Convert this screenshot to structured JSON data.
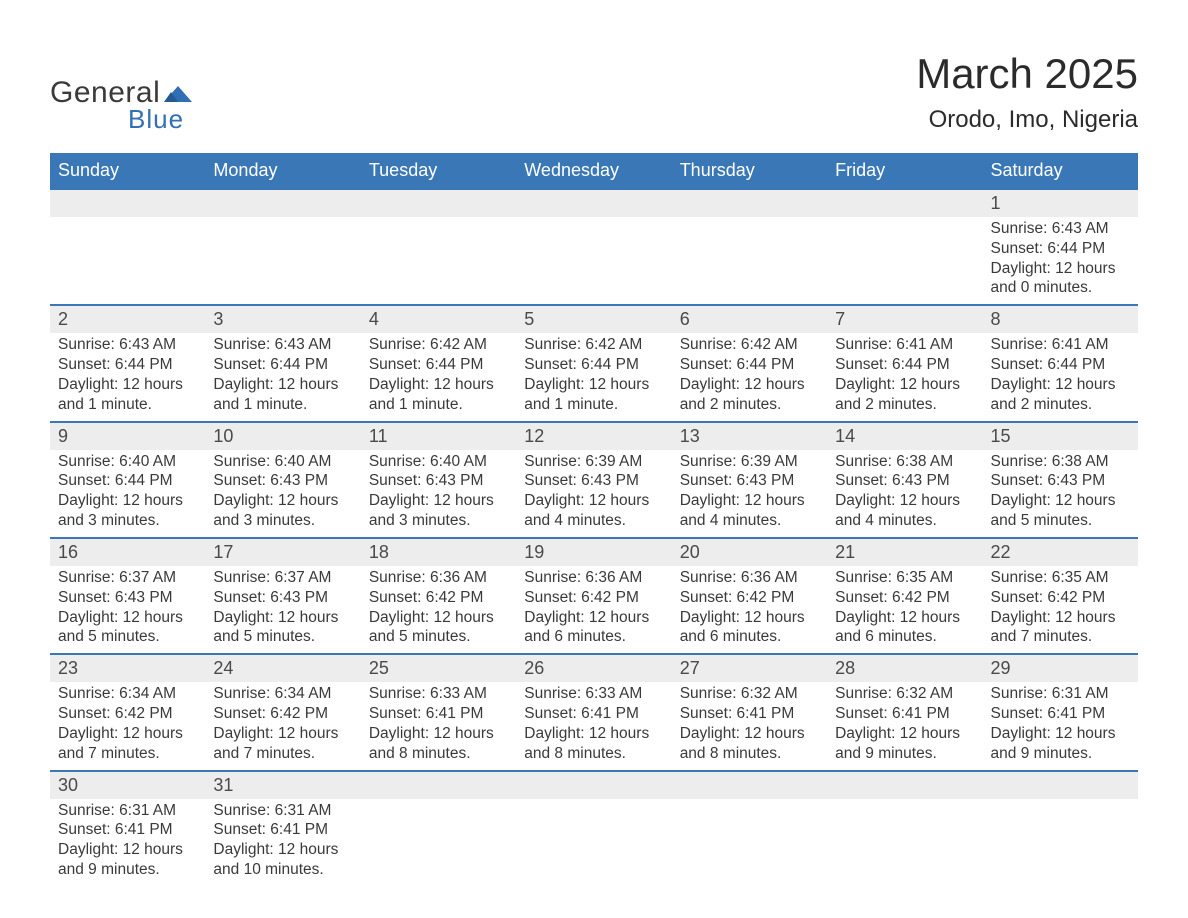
{
  "brand": {
    "general": "General",
    "blue": "Blue",
    "flag_color": "#2f6fb3"
  },
  "title": "March 2025",
  "location": "Orodo, Imo, Nigeria",
  "colors": {
    "header_bg": "#3a77b7",
    "header_text": "#ffffff",
    "row_divider": "#3a77b7",
    "daynum_bg": "#ededed",
    "body_bg": "#ffffff",
    "text": "#3a3a3a"
  },
  "typography": {
    "title_fontsize": 42,
    "location_fontsize": 24,
    "header_fontsize": 18,
    "daynum_fontsize": 18,
    "body_fontsize": 15.5
  },
  "weekdays": [
    "Sunday",
    "Monday",
    "Tuesday",
    "Wednesday",
    "Thursday",
    "Friday",
    "Saturday"
  ],
  "labels": {
    "sunrise": "Sunrise",
    "sunset": "Sunset",
    "daylight": "Daylight"
  },
  "weeks": [
    [
      null,
      null,
      null,
      null,
      null,
      null,
      {
        "n": 1,
        "sunrise": "6:43 AM",
        "sunset": "6:44 PM",
        "daylight": "12 hours and 0 minutes."
      }
    ],
    [
      {
        "n": 2,
        "sunrise": "6:43 AM",
        "sunset": "6:44 PM",
        "daylight": "12 hours and 1 minute."
      },
      {
        "n": 3,
        "sunrise": "6:43 AM",
        "sunset": "6:44 PM",
        "daylight": "12 hours and 1 minute."
      },
      {
        "n": 4,
        "sunrise": "6:42 AM",
        "sunset": "6:44 PM",
        "daylight": "12 hours and 1 minute."
      },
      {
        "n": 5,
        "sunrise": "6:42 AM",
        "sunset": "6:44 PM",
        "daylight": "12 hours and 1 minute."
      },
      {
        "n": 6,
        "sunrise": "6:42 AM",
        "sunset": "6:44 PM",
        "daylight": "12 hours and 2 minutes."
      },
      {
        "n": 7,
        "sunrise": "6:41 AM",
        "sunset": "6:44 PM",
        "daylight": "12 hours and 2 minutes."
      },
      {
        "n": 8,
        "sunrise": "6:41 AM",
        "sunset": "6:44 PM",
        "daylight": "12 hours and 2 minutes."
      }
    ],
    [
      {
        "n": 9,
        "sunrise": "6:40 AM",
        "sunset": "6:44 PM",
        "daylight": "12 hours and 3 minutes."
      },
      {
        "n": 10,
        "sunrise": "6:40 AM",
        "sunset": "6:43 PM",
        "daylight": "12 hours and 3 minutes."
      },
      {
        "n": 11,
        "sunrise": "6:40 AM",
        "sunset": "6:43 PM",
        "daylight": "12 hours and 3 minutes."
      },
      {
        "n": 12,
        "sunrise": "6:39 AM",
        "sunset": "6:43 PM",
        "daylight": "12 hours and 4 minutes."
      },
      {
        "n": 13,
        "sunrise": "6:39 AM",
        "sunset": "6:43 PM",
        "daylight": "12 hours and 4 minutes."
      },
      {
        "n": 14,
        "sunrise": "6:38 AM",
        "sunset": "6:43 PM",
        "daylight": "12 hours and 4 minutes."
      },
      {
        "n": 15,
        "sunrise": "6:38 AM",
        "sunset": "6:43 PM",
        "daylight": "12 hours and 5 minutes."
      }
    ],
    [
      {
        "n": 16,
        "sunrise": "6:37 AM",
        "sunset": "6:43 PM",
        "daylight": "12 hours and 5 minutes."
      },
      {
        "n": 17,
        "sunrise": "6:37 AM",
        "sunset": "6:43 PM",
        "daylight": "12 hours and 5 minutes."
      },
      {
        "n": 18,
        "sunrise": "6:36 AM",
        "sunset": "6:42 PM",
        "daylight": "12 hours and 5 minutes."
      },
      {
        "n": 19,
        "sunrise": "6:36 AM",
        "sunset": "6:42 PM",
        "daylight": "12 hours and 6 minutes."
      },
      {
        "n": 20,
        "sunrise": "6:36 AM",
        "sunset": "6:42 PM",
        "daylight": "12 hours and 6 minutes."
      },
      {
        "n": 21,
        "sunrise": "6:35 AM",
        "sunset": "6:42 PM",
        "daylight": "12 hours and 6 minutes."
      },
      {
        "n": 22,
        "sunrise": "6:35 AM",
        "sunset": "6:42 PM",
        "daylight": "12 hours and 7 minutes."
      }
    ],
    [
      {
        "n": 23,
        "sunrise": "6:34 AM",
        "sunset": "6:42 PM",
        "daylight": "12 hours and 7 minutes."
      },
      {
        "n": 24,
        "sunrise": "6:34 AM",
        "sunset": "6:42 PM",
        "daylight": "12 hours and 7 minutes."
      },
      {
        "n": 25,
        "sunrise": "6:33 AM",
        "sunset": "6:41 PM",
        "daylight": "12 hours and 8 minutes."
      },
      {
        "n": 26,
        "sunrise": "6:33 AM",
        "sunset": "6:41 PM",
        "daylight": "12 hours and 8 minutes."
      },
      {
        "n": 27,
        "sunrise": "6:32 AM",
        "sunset": "6:41 PM",
        "daylight": "12 hours and 8 minutes."
      },
      {
        "n": 28,
        "sunrise": "6:32 AM",
        "sunset": "6:41 PM",
        "daylight": "12 hours and 9 minutes."
      },
      {
        "n": 29,
        "sunrise": "6:31 AM",
        "sunset": "6:41 PM",
        "daylight": "12 hours and 9 minutes."
      }
    ],
    [
      {
        "n": 30,
        "sunrise": "6:31 AM",
        "sunset": "6:41 PM",
        "daylight": "12 hours and 9 minutes."
      },
      {
        "n": 31,
        "sunrise": "6:31 AM",
        "sunset": "6:41 PM",
        "daylight": "12 hours and 10 minutes."
      },
      null,
      null,
      null,
      null,
      null
    ]
  ]
}
